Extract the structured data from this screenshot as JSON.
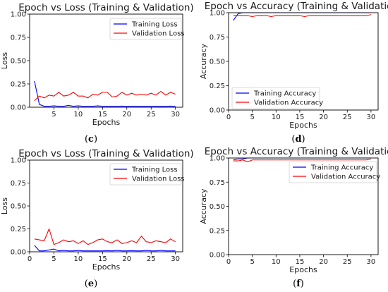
{
  "chart_data": [
    {
      "id": "c",
      "type": "line",
      "title": "Epoch vs Loss (Training & Validation)",
      "xlabel": "Epochs",
      "ylabel": "Loss",
      "caption": "(c)",
      "xlim": [
        0,
        31.5
      ],
      "ylim": [
        0,
        1.0
      ],
      "xticks": [
        5,
        10,
        15,
        20,
        25,
        30
      ],
      "yticks": [
        0.0,
        0.25,
        0.5,
        0.75,
        1.0
      ],
      "ytick_labels": [
        "0.00",
        "0.25",
        "0.50",
        "0.75",
        "1.00"
      ],
      "legend_position": "upper right",
      "x": [
        1,
        2,
        3,
        4,
        5,
        6,
        7,
        8,
        9,
        10,
        11,
        12,
        13,
        14,
        15,
        16,
        17,
        18,
        19,
        20,
        21,
        22,
        23,
        24,
        25,
        26,
        27,
        28,
        29,
        30
      ],
      "series": [
        {
          "name": "Training Loss",
          "color": "#0000ff",
          "values": [
            0.28,
            0.03,
            0.01,
            0.01,
            0.015,
            0.01,
            0.01,
            0.02,
            0.01,
            0.015,
            0.01,
            0.01,
            0.01,
            0.015,
            0.01,
            0.01,
            0.01,
            0.01,
            0.012,
            0.01,
            0.01,
            0.01,
            0.008,
            0.01,
            0.01,
            0.01,
            0.008,
            0.01,
            0.012,
            0.008
          ]
        },
        {
          "name": "Validation Loss",
          "color": "#ff0000",
          "values": [
            0.07,
            0.12,
            0.1,
            0.13,
            0.12,
            0.16,
            0.12,
            0.13,
            0.16,
            0.12,
            0.12,
            0.1,
            0.14,
            0.13,
            0.16,
            0.16,
            0.11,
            0.12,
            0.16,
            0.13,
            0.15,
            0.13,
            0.14,
            0.13,
            0.15,
            0.13,
            0.17,
            0.13,
            0.16,
            0.14
          ]
        }
      ]
    },
    {
      "id": "d",
      "type": "line",
      "title": "Epoch vs Accuracy (Training & Validation)",
      "xlabel": "Epochs",
      "ylabel": "Accuracy",
      "caption": "(d)",
      "xlim": [
        0,
        31.5
      ],
      "ylim": [
        0,
        1.0
      ],
      "xticks": [
        0,
        5,
        10,
        15,
        20,
        25,
        30
      ],
      "yticks": [
        0.0,
        0.25,
        0.5,
        0.75,
        1.0
      ],
      "ytick_labels": [
        "0.00",
        "0.25",
        "0.50",
        "0.75",
        "1.00"
      ],
      "legend_position": "lower center",
      "x": [
        1,
        2,
        3,
        4,
        5,
        6,
        7,
        8,
        9,
        10,
        11,
        12,
        13,
        14,
        15,
        16,
        17,
        18,
        19,
        20,
        21,
        22,
        23,
        24,
        25,
        26,
        27,
        28,
        29,
        30
      ],
      "series": [
        {
          "name": "Training Accuracy",
          "color": "#0000ff",
          "values": [
            0.92,
            0.99,
            1.0,
            1.0,
            1.0,
            1.0,
            1.0,
            1.0,
            1.0,
            1.0,
            1.0,
            1.0,
            1.0,
            1.0,
            1.0,
            1.0,
            1.0,
            1.0,
            1.0,
            1.0,
            1.0,
            1.0,
            1.0,
            1.0,
            1.0,
            1.0,
            1.0,
            1.0,
            1.0,
            1.0
          ]
        },
        {
          "name": "Validation Accuracy",
          "color": "#ff0000",
          "values": [
            0.97,
            0.97,
            0.97,
            0.97,
            0.96,
            0.97,
            0.97,
            0.97,
            0.96,
            0.97,
            0.97,
            0.97,
            0.97,
            0.97,
            0.97,
            0.96,
            0.97,
            0.97,
            0.97,
            0.97,
            0.97,
            0.97,
            0.97,
            0.97,
            0.97,
            0.97,
            0.97,
            0.97,
            0.97,
            0.98
          ]
        }
      ]
    },
    {
      "id": "e",
      "type": "line",
      "title": "Epoch vs Loss (Training & Validation)",
      "xlabel": "Epochs",
      "ylabel": "Loss",
      "caption": "(e)",
      "xlim": [
        0,
        31.5
      ],
      "ylim": [
        0,
        1.0
      ],
      "xticks": [
        0,
        5,
        10,
        15,
        20,
        25,
        30
      ],
      "yticks": [
        0.0,
        0.25,
        0.5,
        0.75,
        1.0
      ],
      "ytick_labels": [
        "0.00",
        "0.25",
        "0.50",
        "0.75",
        "1.00"
      ],
      "legend_position": "upper right",
      "x": [
        1,
        2,
        3,
        4,
        5,
        6,
        7,
        8,
        9,
        10,
        11,
        12,
        13,
        14,
        15,
        16,
        17,
        18,
        19,
        20,
        21,
        22,
        23,
        24,
        25,
        26,
        27,
        28,
        29,
        30
      ],
      "series": [
        {
          "name": "Training Loss",
          "color": "#0000ff",
          "values": [
            0.07,
            0.01,
            0.01,
            0.02,
            0.03,
            0.01,
            0.015,
            0.01,
            0.01,
            0.015,
            0.01,
            0.01,
            0.01,
            0.01,
            0.01,
            0.012,
            0.01,
            0.015,
            0.01,
            0.01,
            0.012,
            0.01,
            0.01,
            0.015,
            0.01,
            0.01,
            0.015,
            0.01,
            0.01,
            0.01
          ]
        },
        {
          "name": "Validation Loss",
          "color": "#ff0000",
          "values": [
            0.14,
            0.13,
            0.12,
            0.25,
            0.08,
            0.1,
            0.13,
            0.11,
            0.12,
            0.09,
            0.12,
            0.08,
            0.1,
            0.13,
            0.14,
            0.11,
            0.1,
            0.13,
            0.09,
            0.1,
            0.12,
            0.1,
            0.17,
            0.11,
            0.1,
            0.12,
            0.11,
            0.1,
            0.14,
            0.11
          ]
        }
      ]
    },
    {
      "id": "f",
      "type": "line",
      "title": "Epoch vs Accuracy (Training & Validation)",
      "xlabel": "Epochs",
      "ylabel": "Accuracy",
      "caption": "(f)",
      "xlim": [
        0,
        31.5
      ],
      "ylim": [
        0,
        1.0
      ],
      "xticks": [
        0,
        5,
        10,
        15,
        20,
        25,
        30
      ],
      "yticks": [
        0.0,
        0.25,
        0.5,
        0.75,
        1.0
      ],
      "ytick_labels": [
        "0.00",
        "0.25",
        "0.50",
        "0.75",
        "1.00"
      ],
      "legend_position": "upper right",
      "x": [
        1,
        2,
        3,
        4,
        5,
        6,
        7,
        8,
        9,
        10,
        11,
        12,
        13,
        14,
        15,
        16,
        17,
        18,
        19,
        20,
        21,
        22,
        23,
        24,
        25,
        26,
        27,
        28,
        29,
        30
      ],
      "series": [
        {
          "name": "Training Accuracy",
          "color": "#0000ff",
          "values": [
            0.98,
            0.99,
            0.99,
            1.0,
            1.0,
            1.0,
            1.0,
            1.0,
            1.0,
            1.0,
            1.0,
            1.0,
            1.0,
            1.0,
            1.0,
            1.0,
            1.0,
            1.0,
            1.0,
            1.0,
            1.0,
            1.0,
            1.0,
            1.0,
            1.0,
            1.0,
            1.0,
            1.0,
            1.0,
            1.0
          ]
        },
        {
          "name": "Validation Accuracy",
          "color": "#ff0000",
          "values": [
            0.97,
            0.97,
            0.98,
            0.96,
            0.98,
            0.98,
            0.98,
            0.98,
            0.98,
            0.98,
            0.98,
            0.98,
            0.98,
            0.98,
            0.98,
            0.98,
            0.98,
            0.98,
            0.98,
            0.98,
            0.98,
            0.98,
            0.98,
            0.98,
            0.98,
            0.98,
            0.98,
            0.98,
            0.98,
            0.99
          ]
        }
      ]
    }
  ]
}
